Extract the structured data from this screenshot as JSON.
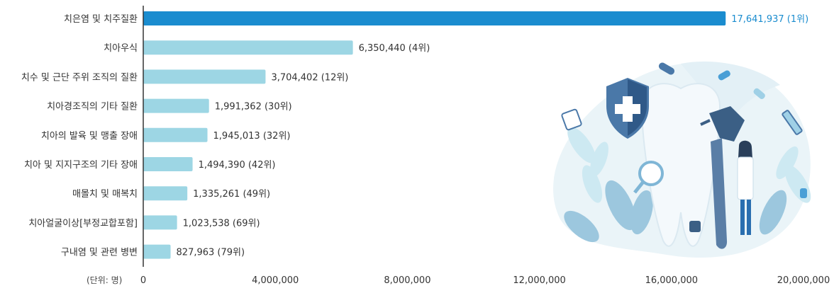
{
  "chart_data": {
    "type": "bar",
    "orientation": "horizontal",
    "title": "",
    "unit_note": "(단위: 명)",
    "categories": [
      "치은염 및 치주질환",
      "치아우식",
      "치수 및 근단 주위 조직의 질환",
      "치아경조직의 기타 질환",
      "치아의 발육 및 맹출 장애",
      "치아 및 지지구조의 기타 장애",
      "매몰치 및 매복치",
      "치아얼굴이상[부정교합포함]",
      "구내염 및 관련 병변"
    ],
    "values": [
      17641937,
      6350440,
      3704402,
      1991362,
      1945013,
      1494390,
      1335261,
      1023538,
      827963
    ],
    "value_labels": [
      "17,641,937 (1위)",
      "6,350,440 (4위)",
      "3,704,402 (12위)",
      "1,991,362 (30위)",
      "1,945,013 (32위)",
      "1,494,390 (42위)",
      "1,335,261 (49위)",
      "1,023,538 (69위)",
      "827,963 (79위)"
    ],
    "xlim": [
      0,
      20000000
    ],
    "xticks": [
      0,
      4000000,
      8000000,
      12000000,
      16000000,
      20000000
    ],
    "xtick_labels": [
      "0",
      "4,000,000",
      "8,000,000",
      "12,000,000",
      "16,000,000",
      "20,000,000"
    ],
    "grid": false,
    "colors": {
      "highlight_bar": "#1a8ccf",
      "bar": "#9dd6e4",
      "axis": "#333333"
    }
  },
  "illustration": {
    "icons": [
      "shield-cross-icon",
      "tooth-icon",
      "syringe-icon",
      "pill-icon",
      "dental-drill-icon",
      "dentist-figure-icon"
    ]
  }
}
